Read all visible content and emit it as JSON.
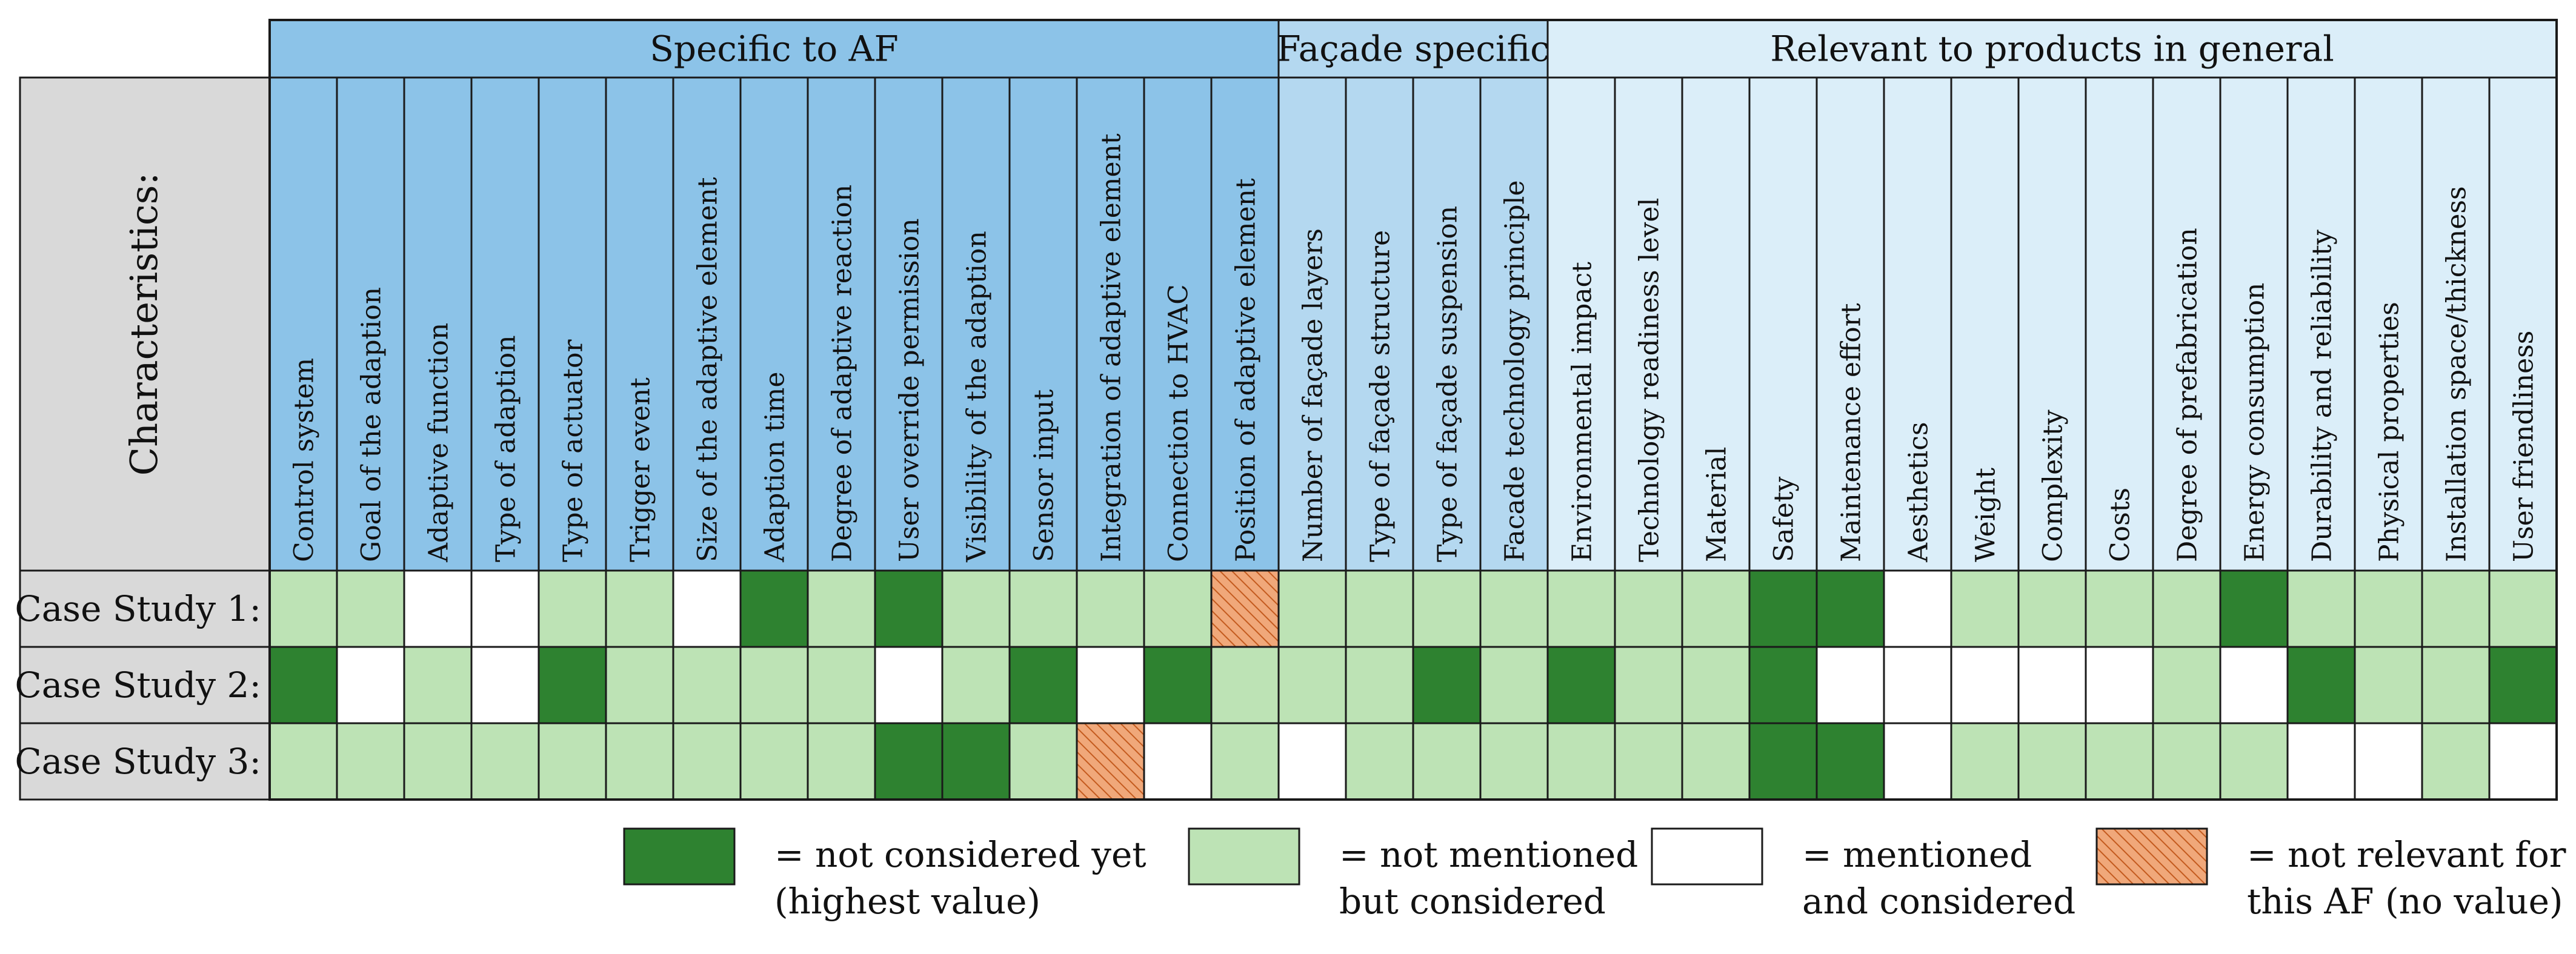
{
  "colors": {
    "header_group_af": "#8cc3e8",
    "header_group_facade": "#b4d8f0",
    "header_group_general": "#dbeef9",
    "header_col_af": "#8cc3e8",
    "header_col_facade": "#b4d8f0",
    "header_col_general": "#dbeef9",
    "row_header_bg": "#d9d9d9",
    "level_dark": "#2e8230",
    "level_light": "#bde3b5",
    "level_white": "#ffffff",
    "level_hatch_bg": "#f0a87a",
    "level_hatch_line": "#c45b1f",
    "grid_line": "#1a1a1a"
  },
  "characteristics_label": "Characteristics:",
  "groups": [
    {
      "label": "Specific to AF",
      "span": 15,
      "kind": "af"
    },
    {
      "label": "Façade specific",
      "span": 4,
      "kind": "facade"
    },
    {
      "label": "Relevant to products in general",
      "span": 15,
      "kind": "general"
    }
  ],
  "columns": [
    "Control system",
    "Goal of the adaption",
    "Adaptive function",
    "Type of adaption",
    "Type of actuator",
    "Trigger event",
    "Size of the adaptive element",
    "Adaption time",
    "Degree of adaptive reaction",
    "User override permission",
    "Visibility of the adaption",
    "Sensor input",
    "Integration of adaptive element",
    "Connection to HVAC",
    "Position of adaptive element",
    "Number of façade layers",
    "Type of façade structure",
    "Type of façade suspension",
    "Facade technology principle",
    "Environmental impact",
    "Technology readiness level",
    "Material",
    "Safety",
    "Maintenance effort",
    "Aesthetics",
    "Weight",
    "Complexity",
    "Costs",
    "Degree of prefabrication",
    "Energy consumption",
    "Durability and reliability",
    "Physical properties",
    "Installation space/thickness",
    "User friendliness"
  ],
  "rows": [
    {
      "label": "Case Study 1:",
      "cells": [
        "L",
        "L",
        "W",
        "W",
        "L",
        "L",
        "W",
        "D",
        "L",
        "D",
        "L",
        "L",
        "L",
        "L",
        "X",
        "L",
        "L",
        "L",
        "L",
        "L",
        "L",
        "L",
        "D",
        "D",
        "W",
        "L",
        "L",
        "L",
        "L",
        "D",
        "L",
        "L",
        "L",
        "L"
      ]
    },
    {
      "label": "Case Study 2:",
      "cells": [
        "D",
        "W",
        "L",
        "W",
        "D",
        "L",
        "L",
        "L",
        "L",
        "W",
        "L",
        "D",
        "W",
        "D",
        "L",
        "L",
        "L",
        "D",
        "L",
        "D",
        "L",
        "L",
        "D",
        "W",
        "W",
        "W",
        "W",
        "W",
        "L",
        "W",
        "D",
        "L",
        "L",
        "D"
      ]
    },
    {
      "label": "Case Study 3:",
      "cells": [
        "L",
        "L",
        "L",
        "L",
        "L",
        "L",
        "L",
        "L",
        "L",
        "D",
        "D",
        "L",
        "X",
        "W",
        "L",
        "W",
        "L",
        "L",
        "L",
        "L",
        "L",
        "L",
        "D",
        "D",
        "W",
        "L",
        "L",
        "L",
        "L",
        "L",
        "W",
        "W",
        "L",
        "W"
      ]
    }
  ],
  "legend": [
    {
      "key": "D",
      "line1": "= not considered yet",
      "line2": "(highest value)"
    },
    {
      "key": "L",
      "line1": "= not mentioned",
      "line2": "but considered"
    },
    {
      "key": "W",
      "line1": "= mentioned",
      "line2": "and considered"
    },
    {
      "key": "X",
      "line1": "= not relevant for",
      "line2": "this AF (no value)"
    }
  ]
}
